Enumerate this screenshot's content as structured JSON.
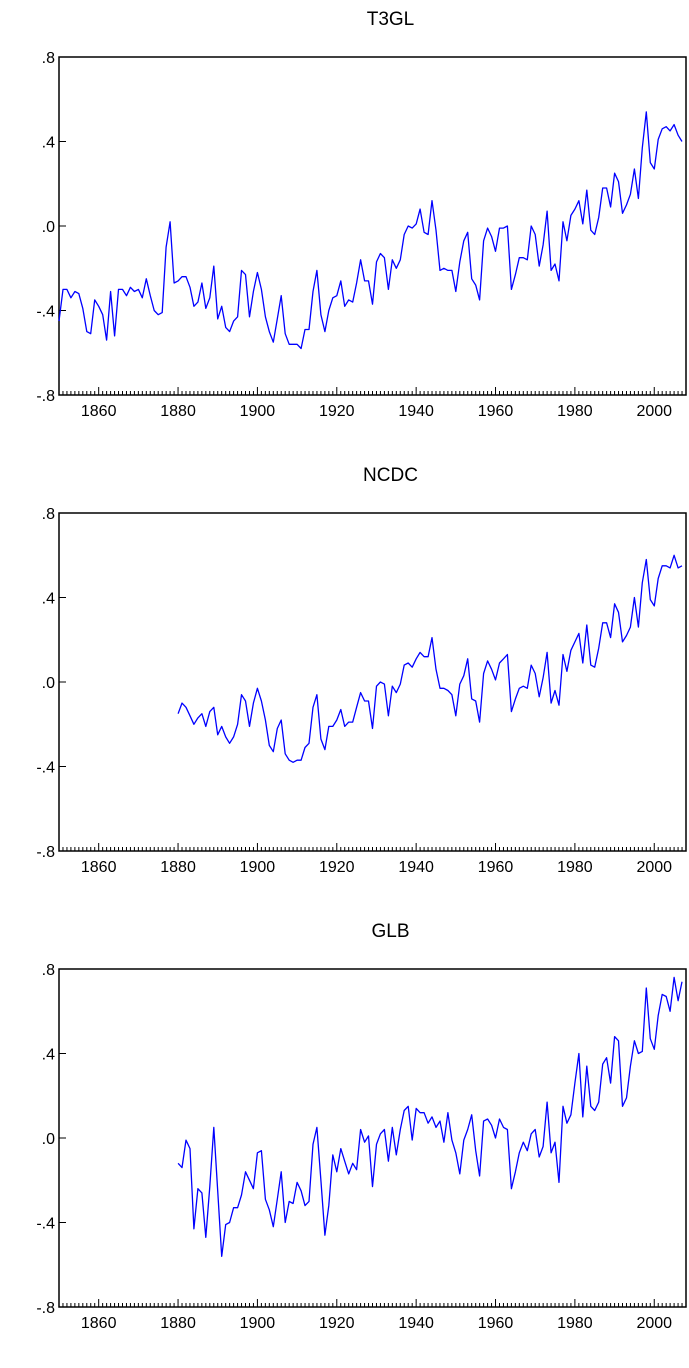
{
  "chart_data": [
    {
      "type": "line",
      "title": "T3GL",
      "xlabel": "",
      "ylabel": "",
      "xlim": [
        1850,
        2008
      ],
      "ylim": [
        -0.8,
        0.8
      ],
      "x_ticks": [
        "1860",
        "1880",
        "1900",
        "1920",
        "1940",
        "1960",
        "1980",
        "2000"
      ],
      "y_ticks": [
        ".8",
        ".4",
        ".0",
        "-.4",
        "-.8"
      ],
      "grid": false,
      "series_color": "#0000ff",
      "series": [
        {
          "x_start": 1850,
          "values": [
            -0.45,
            -0.3,
            -0.3,
            -0.34,
            -0.31,
            -0.32,
            -0.39,
            -0.5,
            -0.51,
            -0.35,
            -0.38,
            -0.42,
            -0.54,
            -0.31,
            -0.52,
            -0.3,
            -0.3,
            -0.33,
            -0.29,
            -0.31,
            -0.3,
            -0.34,
            -0.25,
            -0.33,
            -0.4,
            -0.42,
            -0.41,
            -0.1,
            0.02,
            -0.27,
            -0.26,
            -0.24,
            -0.24,
            -0.29,
            -0.38,
            -0.36,
            -0.27,
            -0.39,
            -0.34,
            -0.19,
            -0.44,
            -0.38,
            -0.48,
            -0.5,
            -0.45,
            -0.43,
            -0.21,
            -0.23,
            -0.43,
            -0.31,
            -0.22,
            -0.3,
            -0.43,
            -0.5,
            -0.55,
            -0.44,
            -0.33,
            -0.51,
            -0.56,
            -0.56,
            -0.56,
            -0.58,
            -0.49,
            -0.49,
            -0.31,
            -0.21,
            -0.42,
            -0.5,
            -0.4,
            -0.34,
            -0.33,
            -0.26,
            -0.38,
            -0.35,
            -0.36,
            -0.27,
            -0.16,
            -0.26,
            -0.26,
            -0.37,
            -0.17,
            -0.13,
            -0.15,
            -0.3,
            -0.16,
            -0.2,
            -0.16,
            -0.04,
            0.0,
            -0.01,
            0.01,
            0.08,
            -0.03,
            -0.04,
            0.12,
            -0.02,
            -0.21,
            -0.2,
            -0.21,
            -0.21,
            -0.31,
            -0.17,
            -0.07,
            -0.03,
            -0.25,
            -0.28,
            -0.35,
            -0.07,
            -0.01,
            -0.05,
            -0.12,
            -0.01,
            -0.01,
            0.0,
            -0.3,
            -0.23,
            -0.15,
            -0.15,
            -0.16,
            0.0,
            -0.04,
            -0.19,
            -0.09,
            0.07,
            -0.21,
            -0.18,
            -0.26,
            0.02,
            -0.07,
            0.05,
            0.08,
            0.12,
            0.01,
            0.17,
            -0.02,
            -0.04,
            0.04,
            0.18,
            0.18,
            0.09,
            0.25,
            0.21,
            0.06,
            0.1,
            0.15,
            0.27,
            0.13,
            0.37,
            0.54,
            0.3,
            0.27,
            0.41,
            0.46,
            0.47,
            0.45,
            0.48,
            0.43,
            0.4
          ]
        }
      ]
    },
    {
      "type": "line",
      "title": "NCDC",
      "xlabel": "",
      "ylabel": "",
      "xlim": [
        1850,
        2008
      ],
      "ylim": [
        -0.8,
        0.8
      ],
      "x_ticks": [
        "1860",
        "1880",
        "1900",
        "1920",
        "1940",
        "1960",
        "1980",
        "2000"
      ],
      "y_ticks": [
        ".8",
        ".4",
        ".0",
        "-.4",
        "-.8"
      ],
      "grid": false,
      "series_color": "#0000ff",
      "series": [
        {
          "x_start": 1880,
          "values": [
            -0.15,
            -0.1,
            -0.12,
            -0.16,
            -0.2,
            -0.17,
            -0.15,
            -0.21,
            -0.14,
            -0.12,
            -0.25,
            -0.21,
            -0.26,
            -0.29,
            -0.26,
            -0.2,
            -0.06,
            -0.09,
            -0.21,
            -0.1,
            -0.03,
            -0.09,
            -0.18,
            -0.3,
            -0.33,
            -0.22,
            -0.18,
            -0.34,
            -0.37,
            -0.38,
            -0.37,
            -0.37,
            -0.31,
            -0.29,
            -0.12,
            -0.06,
            -0.27,
            -0.32,
            -0.21,
            -0.21,
            -0.18,
            -0.13,
            -0.21,
            -0.19,
            -0.19,
            -0.12,
            -0.05,
            -0.09,
            -0.09,
            -0.22,
            -0.02,
            0.0,
            -0.01,
            -0.16,
            -0.02,
            -0.05,
            -0.01,
            0.08,
            0.09,
            0.07,
            0.11,
            0.14,
            0.12,
            0.12,
            0.21,
            0.06,
            -0.03,
            -0.03,
            -0.04,
            -0.06,
            -0.16,
            -0.01,
            0.03,
            0.11,
            -0.08,
            -0.09,
            -0.19,
            0.04,
            0.1,
            0.06,
            0.01,
            0.09,
            0.11,
            0.13,
            -0.14,
            -0.08,
            -0.03,
            -0.02,
            -0.03,
            0.08,
            0.04,
            -0.07,
            0.02,
            0.14,
            -0.1,
            -0.04,
            -0.11,
            0.13,
            0.05,
            0.15,
            0.19,
            0.23,
            0.09,
            0.27,
            0.08,
            0.07,
            0.16,
            0.28,
            0.28,
            0.21,
            0.37,
            0.33,
            0.19,
            0.22,
            0.26,
            0.4,
            0.26,
            0.47,
            0.58,
            0.39,
            0.36,
            0.49,
            0.55,
            0.55,
            0.54,
            0.6,
            0.54,
            0.55
          ]
        }
      ]
    },
    {
      "type": "line",
      "title": "GLB",
      "xlabel": "",
      "ylabel": "",
      "xlim": [
        1850,
        2008
      ],
      "ylim": [
        -0.8,
        0.8
      ],
      "x_ticks": [
        "1860",
        "1880",
        "1900",
        "1920",
        "1940",
        "1960",
        "1980",
        "2000"
      ],
      "y_ticks": [
        ".8",
        ".4",
        ".0",
        "-.4",
        "-.8"
      ],
      "grid": false,
      "series_color": "#0000ff",
      "series": [
        {
          "x_start": 1880,
          "values": [
            -0.12,
            -0.14,
            -0.01,
            -0.05,
            -0.43,
            -0.24,
            -0.26,
            -0.47,
            -0.23,
            0.05,
            -0.25,
            -0.56,
            -0.41,
            -0.4,
            -0.33,
            -0.33,
            -0.27,
            -0.16,
            -0.2,
            -0.24,
            -0.07,
            -0.06,
            -0.29,
            -0.34,
            -0.42,
            -0.29,
            -0.16,
            -0.4,
            -0.3,
            -0.31,
            -0.21,
            -0.25,
            -0.32,
            -0.3,
            -0.03,
            0.05,
            -0.2,
            -0.46,
            -0.32,
            -0.08,
            -0.16,
            -0.05,
            -0.11,
            -0.17,
            -0.12,
            -0.15,
            0.04,
            -0.02,
            0.01,
            -0.23,
            -0.03,
            0.02,
            0.04,
            -0.11,
            0.05,
            -0.08,
            0.04,
            0.13,
            0.15,
            -0.01,
            0.14,
            0.12,
            0.12,
            0.07,
            0.1,
            0.05,
            0.08,
            -0.02,
            0.12,
            -0.01,
            -0.07,
            -0.17,
            -0.01,
            0.04,
            0.11,
            -0.06,
            -0.18,
            0.08,
            0.09,
            0.06,
            0.0,
            0.09,
            0.05,
            0.04,
            -0.24,
            -0.16,
            -0.07,
            -0.02,
            -0.06,
            0.02,
            0.04,
            -0.09,
            -0.04,
            0.17,
            -0.07,
            -0.02,
            -0.21,
            0.15,
            0.07,
            0.11,
            0.26,
            0.4,
            0.1,
            0.34,
            0.15,
            0.13,
            0.17,
            0.35,
            0.38,
            0.26,
            0.48,
            0.46,
            0.15,
            0.19,
            0.34,
            0.46,
            0.4,
            0.41,
            0.71,
            0.47,
            0.42,
            0.58,
            0.68,
            0.67,
            0.6,
            0.76,
            0.65,
            0.74
          ]
        }
      ]
    }
  ]
}
